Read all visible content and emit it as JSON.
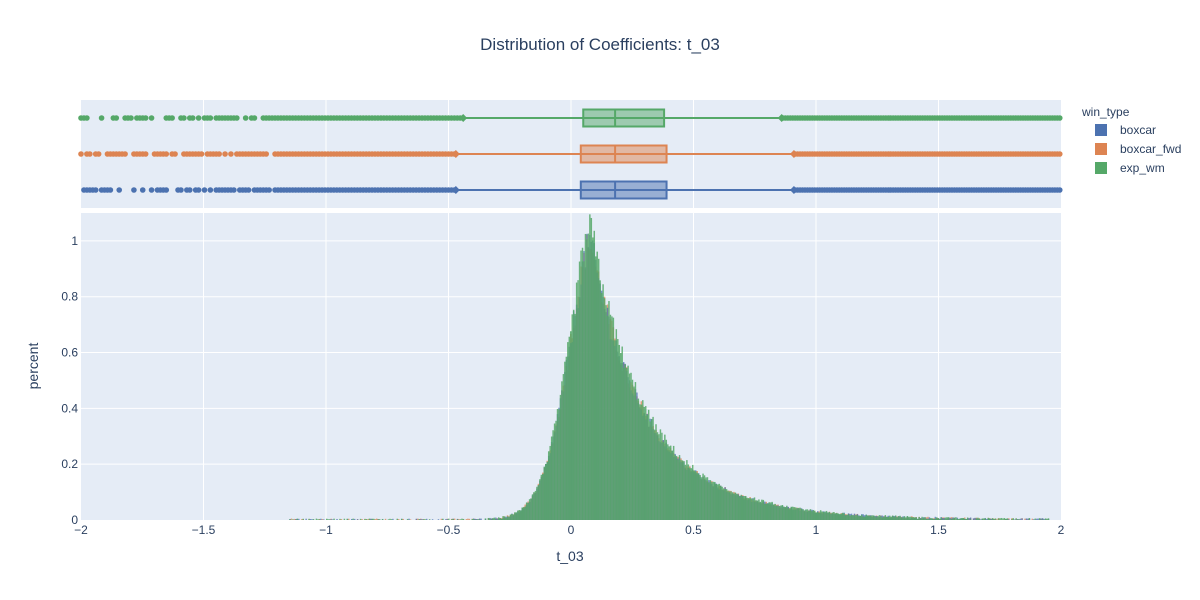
{
  "chart_data": {
    "type": "histogram",
    "title": "Distribution of Coefficients: t_03",
    "xlabel": "t_03",
    "ylabel": "percent",
    "xlim": [
      -2,
      2
    ],
    "ylim": [
      0,
      1.1
    ],
    "x_ticks": [
      "−2",
      "−1.5",
      "−1",
      "−0.5",
      "0",
      "0.5",
      "1",
      "1.5",
      "2"
    ],
    "x_tick_values": [
      -2,
      -1.5,
      -1,
      -0.5,
      0,
      0.5,
      1,
      1.5,
      2
    ],
    "y_ticks": [
      "0",
      "0.2",
      "0.4",
      "0.6",
      "0.8",
      "1"
    ],
    "y_tick_values": [
      0,
      0.2,
      0.4,
      0.6,
      0.8,
      1
    ],
    "grid": true,
    "legend": {
      "title": "win_type",
      "placement": "right"
    },
    "series": [
      {
        "name": "boxcar",
        "color": "#4c72b0",
        "box": {
          "q1": 0.04,
          "median": 0.18,
          "q3": 0.39,
          "lower_fence": -0.47,
          "upper_fence": 0.91,
          "outliers_min": -2.0
        },
        "histogram": {
          "peak_x": 0.08,
          "peak_percent": 1.0
        }
      },
      {
        "name": "boxcar_fwd",
        "color": "#dd8452",
        "box": {
          "q1": 0.04,
          "median": 0.18,
          "q3": 0.39,
          "lower_fence": -0.47,
          "upper_fence": 0.91,
          "outliers_min": -2.0
        },
        "histogram": {
          "peak_x": 0.08,
          "peak_percent": 1.0
        }
      },
      {
        "name": "exp_wm",
        "color": "#55a868",
        "box": {
          "q1": 0.05,
          "median": 0.18,
          "q3": 0.38,
          "lower_fence": -0.44,
          "upper_fence": 0.86,
          "outliers_min": -2.0
        },
        "histogram": {
          "peak_x": 0.08,
          "peak_percent": 1.05
        }
      }
    ]
  }
}
